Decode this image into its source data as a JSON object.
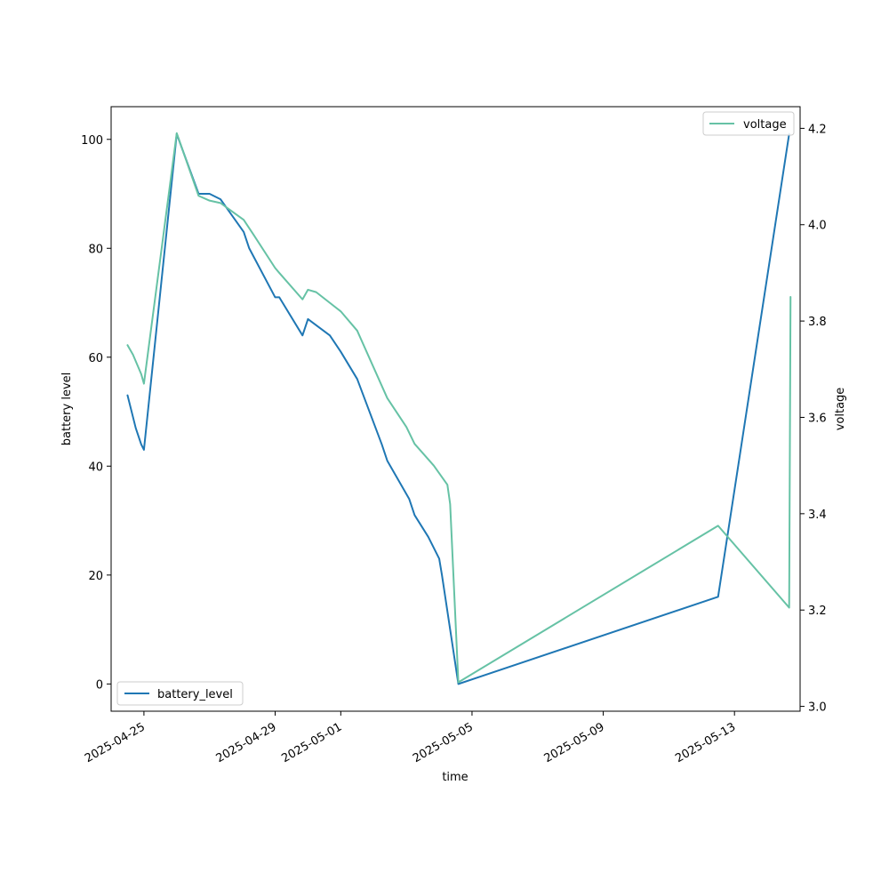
{
  "chart_data": {
    "type": "line",
    "x_axis_type": "date",
    "xlabel": "time",
    "ylabel": "battery level",
    "ylabel_right": "voltage",
    "xlim": [
      "2025-04-24",
      "2025-05-15"
    ],
    "ylim": [
      -5,
      106
    ],
    "ylim_right": [
      2.99,
      4.245
    ],
    "x_ticks": [
      "2025-04-25",
      "2025-04-29",
      "2025-05-01",
      "2025-05-05",
      "2025-05-09",
      "2025-05-13"
    ],
    "y_ticks": [
      0,
      20,
      40,
      60,
      80,
      100
    ],
    "y_ticks_right": [
      3.0,
      3.2,
      3.4,
      3.6,
      3.8,
      4.0,
      4.2
    ],
    "y_tick_labels_right": [
      "3.0",
      "3.2",
      "3.4",
      "3.6",
      "3.8",
      "4.0",
      "4.2"
    ],
    "grid": false,
    "series": [
      {
        "name": "battery_level",
        "axis": "left",
        "color": "#1f77b4",
        "legend_position": "lower-left",
        "points": [
          [
            "2025-04-24 12:00",
            53
          ],
          [
            "2025-04-24 18:00",
            47
          ],
          [
            "2025-04-24 22:00",
            44
          ],
          [
            "2025-04-25 00:00",
            43
          ],
          [
            "2025-04-26 00:00",
            101
          ],
          [
            "2025-04-26 16:00",
            90
          ],
          [
            "2025-04-27 00:00",
            90
          ],
          [
            "2025-04-27 08:00",
            89
          ],
          [
            "2025-04-28 01:00",
            83
          ],
          [
            "2025-04-28 05:00",
            80
          ],
          [
            "2025-04-29 00:00",
            71
          ],
          [
            "2025-04-29 03:00",
            71
          ],
          [
            "2025-04-29 20:00",
            64
          ],
          [
            "2025-04-30 00:00",
            67
          ],
          [
            "2025-04-30 16:00",
            64
          ],
          [
            "2025-05-01 00:00",
            61
          ],
          [
            "2025-05-01 12:00",
            56
          ],
          [
            "2025-05-02 06:00",
            44
          ],
          [
            "2025-05-02 10:00",
            41
          ],
          [
            "2025-05-03 02:00",
            34
          ],
          [
            "2025-05-03 06:00",
            31
          ],
          [
            "2025-05-03 16:00",
            27
          ],
          [
            "2025-05-04 00:00",
            23
          ],
          [
            "2025-05-04 02:00",
            20
          ],
          [
            "2025-05-04 14:00",
            0
          ],
          [
            "2025-05-12 12:00",
            16
          ],
          [
            "2025-05-14 16:00",
            101
          ]
        ]
      },
      {
        "name": "voltage",
        "axis": "right",
        "color": "#66c2a5",
        "legend_position": "upper-right",
        "points": [
          [
            "2025-04-24 12:00",
            3.75
          ],
          [
            "2025-04-24 16:00",
            3.73
          ],
          [
            "2025-04-24 22:00",
            3.69
          ],
          [
            "2025-04-25 00:00",
            3.67
          ],
          [
            "2025-04-26 00:00",
            4.19
          ],
          [
            "2025-04-26 16:00",
            4.06
          ],
          [
            "2025-04-27 00:00",
            4.05
          ],
          [
            "2025-04-27 08:00",
            4.045
          ],
          [
            "2025-04-28 01:00",
            4.01
          ],
          [
            "2025-04-28 08:00",
            3.98
          ],
          [
            "2025-04-29 00:00",
            3.91
          ],
          [
            "2025-04-29 03:00",
            3.9
          ],
          [
            "2025-04-29 20:00",
            3.845
          ],
          [
            "2025-04-30 00:00",
            3.865
          ],
          [
            "2025-04-30 06:00",
            3.86
          ],
          [
            "2025-05-01 00:00",
            3.82
          ],
          [
            "2025-05-01 12:00",
            3.78
          ],
          [
            "2025-05-02 10:00",
            3.64
          ],
          [
            "2025-05-03 00:00",
            3.58
          ],
          [
            "2025-05-03 06:00",
            3.545
          ],
          [
            "2025-05-03 20:00",
            3.5
          ],
          [
            "2025-05-04 06:00",
            3.46
          ],
          [
            "2025-05-04 08:00",
            3.42
          ],
          [
            "2025-05-04 14:00",
            3.05
          ],
          [
            "2025-05-12 12:00",
            3.375
          ],
          [
            "2025-05-14 16:00",
            3.205
          ],
          [
            "2025-05-14 17:00",
            3.85
          ]
        ]
      }
    ]
  }
}
